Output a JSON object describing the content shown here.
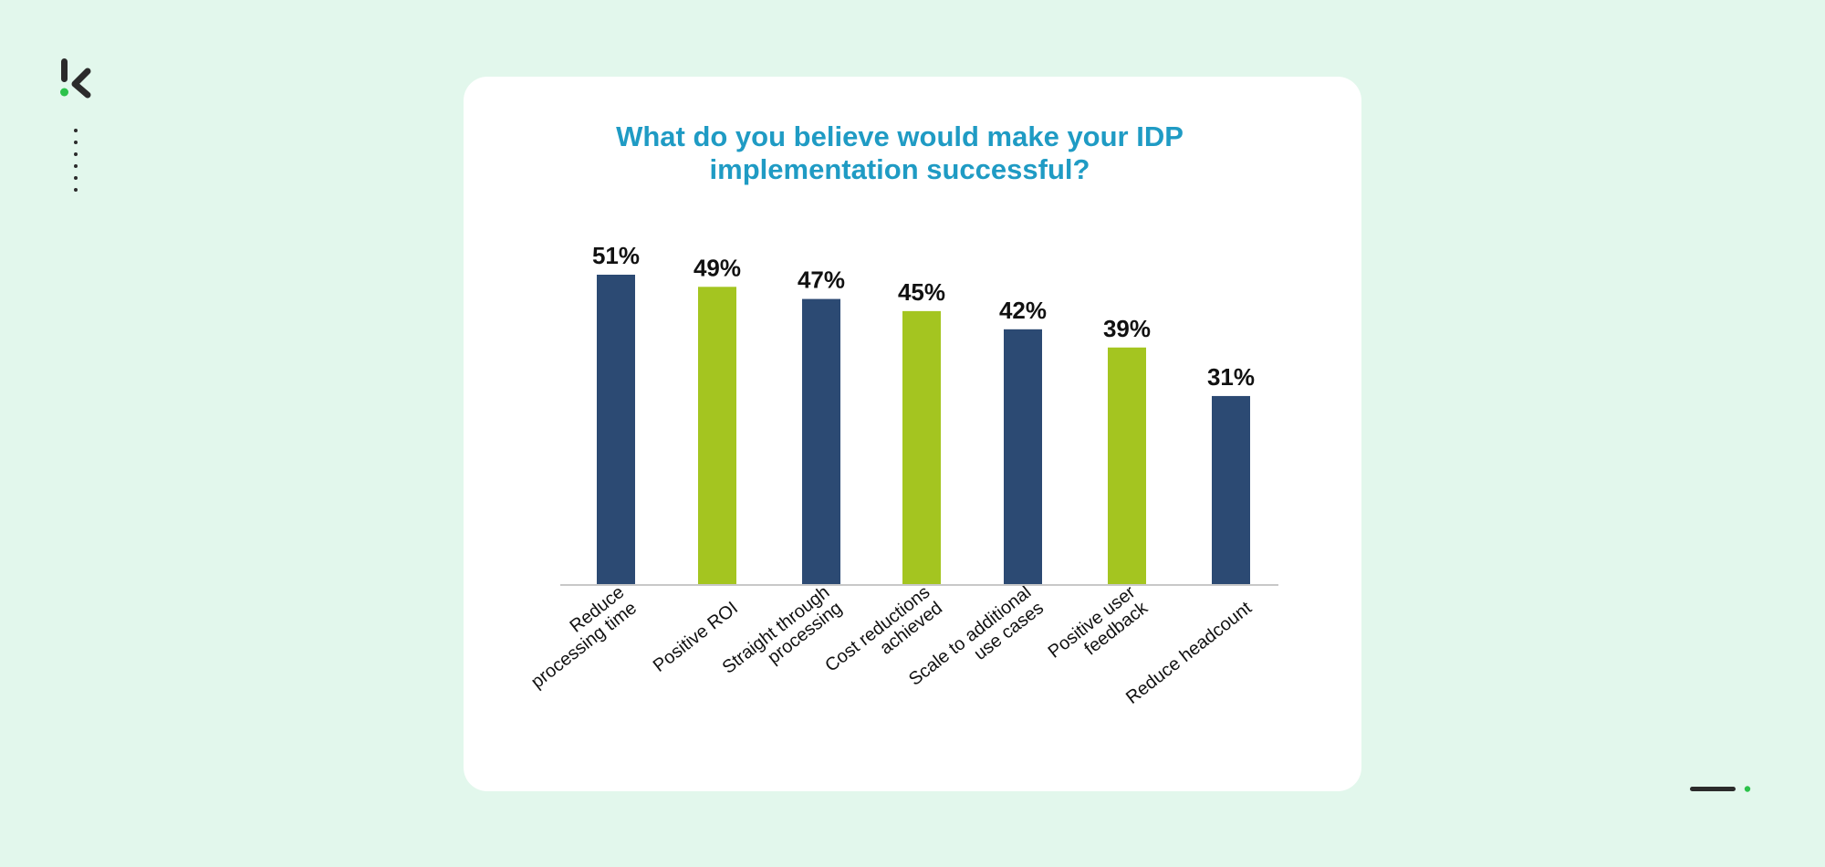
{
  "colors": {
    "background": "#e2f7ec",
    "card": "#ffffff",
    "title": "#1f9bc4",
    "bar_primary": "#2c4a73",
    "bar_secondary": "#a4c520",
    "label_text": "#111111",
    "axis": "#c8c8c8",
    "logo_dark": "#2b2b2b",
    "logo_accent": "#2bc24a"
  },
  "icons": {
    "logo": "brand-k-logo",
    "dots": "vertical-dots",
    "bottom": "progress-dash-dot"
  },
  "chart_data": {
    "type": "bar",
    "title_lines": [
      "What do you believe would make your IDP",
      "implementation successful?"
    ],
    "categories": [
      [
        "Reduce",
        "processing time"
      ],
      [
        "Positive ROI"
      ],
      [
        "Straight through",
        "processing"
      ],
      [
        "Cost reductions",
        "achieved"
      ],
      [
        "Scale to additional",
        "use cases"
      ],
      [
        "Positive user",
        "feedback"
      ],
      [
        "Reduce headcount"
      ]
    ],
    "values": [
      51,
      49,
      47,
      45,
      42,
      39,
      31
    ],
    "value_suffix": "%",
    "value_labels": [
      "51%",
      "49%",
      "47%",
      "45%",
      "42%",
      "39%",
      "31%"
    ],
    "bar_colors": [
      "#2c4a73",
      "#a4c520",
      "#2c4a73",
      "#a4c520",
      "#2c4a73",
      "#a4c520",
      "#2c4a73"
    ],
    "ylim": [
      0,
      51
    ],
    "grid": false,
    "legend": "none",
    "xlabel": "",
    "ylabel": ""
  }
}
